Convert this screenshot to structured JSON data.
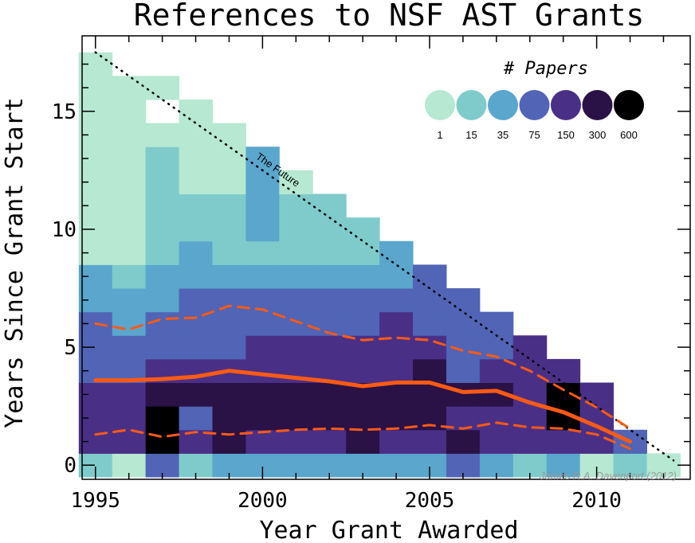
{
  "chart_data": {
    "type": "heatmap",
    "title": "References to NSF AST Grants",
    "xlabel": "Year Grant Awarded",
    "ylabel": "Years Since Grant Start",
    "xlim": [
      1994.6,
      2012.8
    ],
    "ylim": [
      -0.6,
      18.2
    ],
    "xticks": [
      1995,
      2000,
      2005,
      2010
    ],
    "yticks": [
      0,
      5,
      10,
      15
    ],
    "legend": {
      "title": "# Papers",
      "levels": [
        {
          "label": "1",
          "color": "#b6e8d2"
        },
        {
          "label": "15",
          "color": "#7fcbcb"
        },
        {
          "label": "35",
          "color": "#5aa6cc"
        },
        {
          "label": "75",
          "color": "#5164b5"
        },
        {
          "label": "150",
          "color": "#4a2f87"
        },
        {
          "label": "300",
          "color": "#2a1146"
        },
        {
          "label": "600",
          "color": "#000000"
        }
      ],
      "placement": "top-right"
    },
    "cells_note": "each row is one award year; entries give color level index (0-6) for years since start 0,1,2,...; null = empty",
    "columns": [
      {
        "year": 1995,
        "levels": [
          1,
          4,
          4,
          4,
          3,
          3,
          3,
          2,
          2,
          0,
          0,
          0,
          0,
          0,
          0,
          0,
          0,
          0
        ]
      },
      {
        "year": 1996,
        "levels": [
          0,
          4,
          4,
          4,
          3,
          3,
          2,
          2,
          1,
          0,
          0,
          0,
          0,
          0,
          0,
          0,
          0
        ]
      },
      {
        "year": 1997,
        "levels": [
          3,
          6,
          6,
          5,
          4,
          3,
          3,
          2,
          2,
          1,
          1,
          1,
          1,
          1,
          0,
          null,
          0
        ]
      },
      {
        "year": 1998,
        "levels": [
          1,
          4,
          3,
          5,
          4,
          3,
          3,
          3,
          2,
          2,
          1,
          1,
          0,
          0,
          0,
          0
        ]
      },
      {
        "year": 1999,
        "levels": [
          2,
          5,
          5,
          5,
          4,
          3,
          3,
          3,
          2,
          1,
          1,
          1,
          0,
          0,
          0
        ]
      },
      {
        "year": 2000,
        "levels": [
          2,
          4,
          5,
          5,
          4,
          4,
          3,
          3,
          2,
          1,
          2,
          2,
          2,
          2
        ]
      },
      {
        "year": 2001,
        "levels": [
          2,
          4,
          5,
          5,
          4,
          4,
          3,
          3,
          2,
          1,
          1,
          1,
          0
        ]
      },
      {
        "year": 2002,
        "levels": [
          2,
          4,
          5,
          5,
          4,
          4,
          3,
          3,
          2,
          1,
          1,
          1
        ]
      },
      {
        "year": 2003,
        "levels": [
          2,
          5,
          5,
          5,
          4,
          4,
          3,
          3,
          2,
          1,
          1
        ]
      },
      {
        "year": 2004,
        "levels": [
          2,
          4,
          5,
          5,
          4,
          4,
          4,
          3,
          2,
          2
        ]
      },
      {
        "year": 2005,
        "levels": [
          2,
          4,
          5,
          5,
          5,
          4,
          3,
          3,
          3
        ]
      },
      {
        "year": 2006,
        "levels": [
          3,
          5,
          4,
          5,
          3,
          3,
          3,
          3
        ]
      },
      {
        "year": 2007,
        "levels": [
          2,
          4,
          4,
          5,
          4,
          3,
          3
        ]
      },
      {
        "year": 2008,
        "levels": [
          1,
          4,
          4,
          4,
          4,
          4
        ]
      },
      {
        "year": 2009,
        "levels": [
          2,
          4,
          6,
          6,
          4
        ]
      },
      {
        "year": 2010,
        "levels": [
          0,
          4,
          4,
          4
        ]
      },
      {
        "year": 2011,
        "levels": [
          1,
          3
        ]
      },
      {
        "year": 2012,
        "levels": [
          0
        ]
      }
    ],
    "series": [
      {
        "style": "solid",
        "color": "#ff5a14",
        "x": [
          1995,
          1996,
          1997,
          1998,
          1999,
          2000,
          2001,
          2002,
          2003,
          2004,
          2005,
          2006,
          2007,
          2008,
          2009,
          2010,
          2011
        ],
        "y": [
          3.6,
          3.6,
          3.65,
          3.75,
          4.0,
          3.85,
          3.7,
          3.55,
          3.35,
          3.5,
          3.5,
          3.1,
          3.15,
          2.65,
          2.25,
          1.65,
          1.0
        ]
      },
      {
        "style": "dashed",
        "color": "#ff5a14",
        "x": [
          1995,
          1996,
          1997,
          1998,
          1999,
          2000,
          2001,
          2002,
          2003,
          2004,
          2005,
          2006,
          2007,
          2008,
          2009,
          2010,
          2011
        ],
        "y": [
          6.0,
          5.75,
          6.2,
          6.25,
          6.75,
          6.6,
          6.1,
          5.6,
          5.3,
          5.4,
          5.3,
          4.85,
          4.6,
          4.0,
          3.2,
          2.45,
          1.55
        ]
      },
      {
        "style": "dashed",
        "color": "#ff5a14",
        "x": [
          1995,
          1996,
          1997,
          1998,
          1999,
          2000,
          2001,
          2002,
          2003,
          2004,
          2005,
          2006,
          2007,
          2008,
          2009,
          2010,
          2011
        ],
        "y": [
          1.3,
          1.5,
          1.2,
          1.4,
          1.3,
          1.4,
          1.5,
          1.55,
          1.5,
          1.55,
          1.7,
          1.55,
          1.8,
          1.6,
          1.55,
          1.3,
          0.7
        ]
      }
    ],
    "future_line": {
      "label": "The Future",
      "x": [
        1995,
        2012.3
      ],
      "y": [
        17.5,
        0.2
      ]
    },
    "credit": "James R.A. Davenport (2012)"
  }
}
